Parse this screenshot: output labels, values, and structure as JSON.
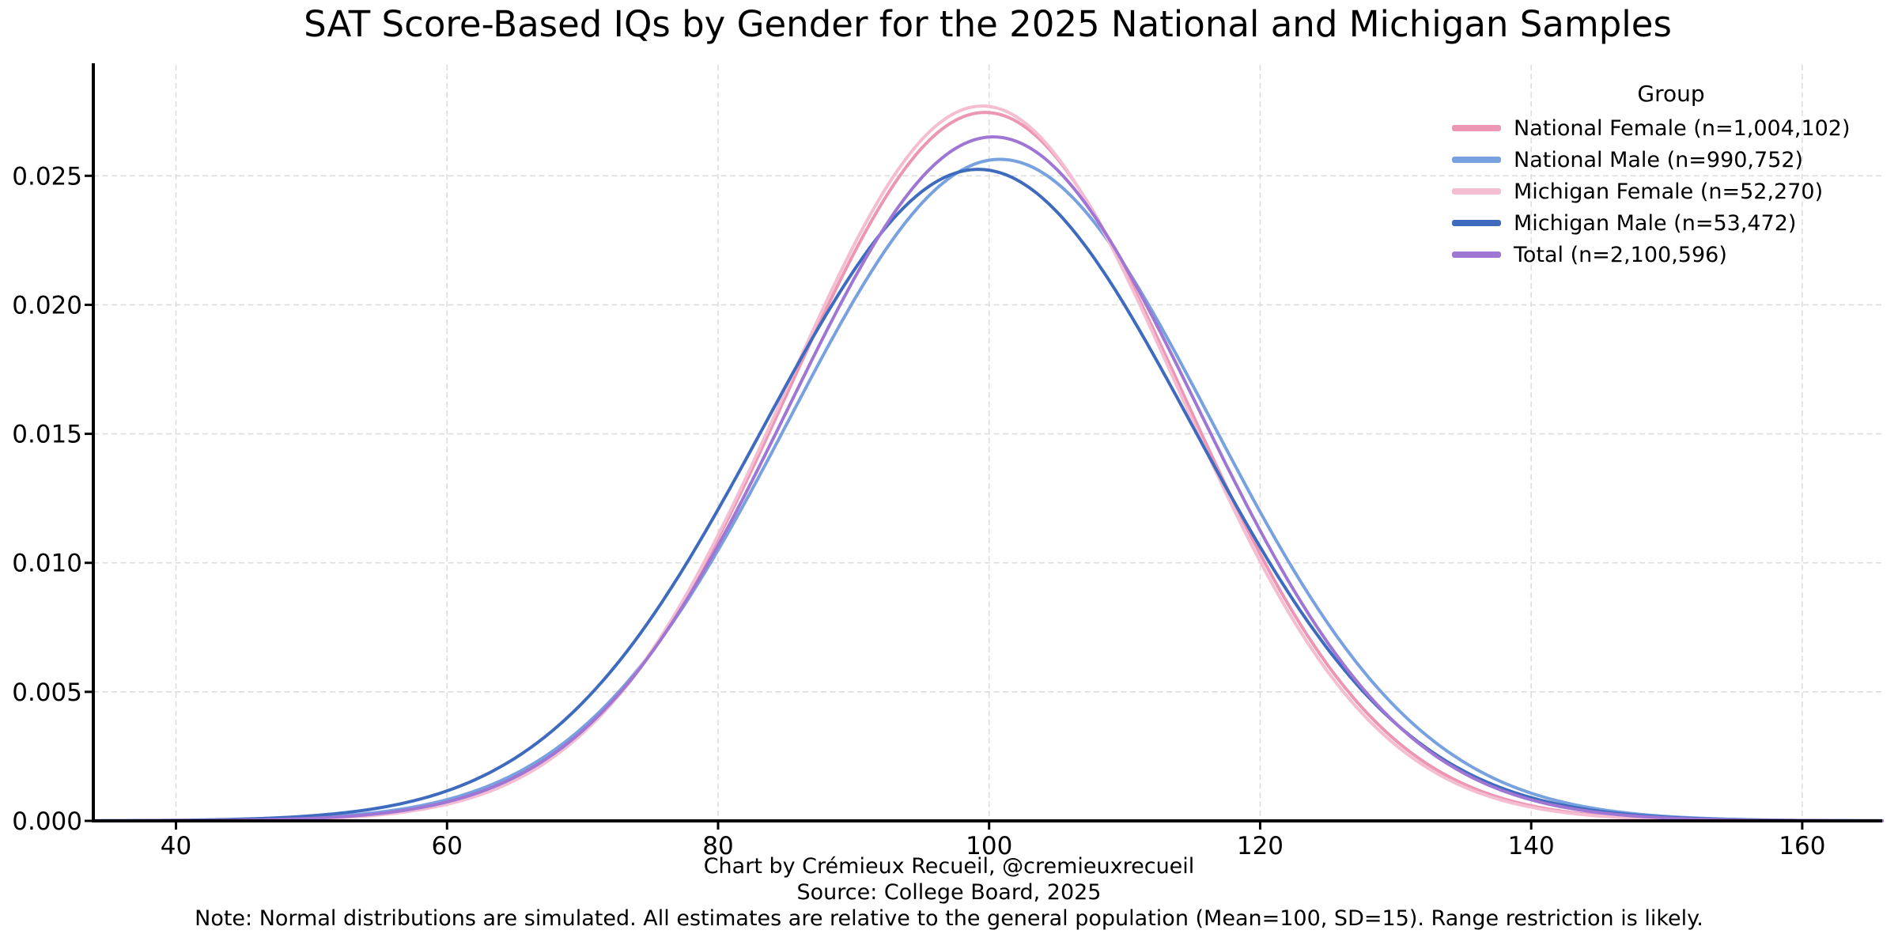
{
  "title": "SAT Score-Based IQs by Gender for the 2025 National and Michigan Samples",
  "legend": {
    "title": "Group",
    "items": [
      {
        "label": "National Female (n=1,004,102)"
      },
      {
        "label": "National Male (n=990,752)"
      },
      {
        "label": "Michigan Female (n=52,270)"
      },
      {
        "label": "Michigan Male (n=53,472)"
      },
      {
        "label": "Total (n=2,100,596)"
      }
    ]
  },
  "footer": {
    "credit": "Chart by Crémieux Recueil, @cremieuxrecueil",
    "source": "Source: College Board, 2025",
    "note": "Note: Normal distributions are simulated. All estimates are relative to the general population (Mean=100, SD=15). Range restriction is likely."
  },
  "chart_data": {
    "type": "line",
    "subtype": "normal-density-curves",
    "title": "SAT Score-Based IQs by Gender for the 2025 National and Michigan Samples",
    "xlabel": "",
    "ylabel": "",
    "xlim": [
      33.9,
      165.9
    ],
    "ylim": [
      0,
      0.0293
    ],
    "x_ticks": [
      40,
      60,
      80,
      100,
      120,
      140,
      160
    ],
    "y_ticks": [
      0.0,
      0.005,
      0.01,
      0.015,
      0.02,
      0.025
    ],
    "y_tick_labels": [
      "0.000",
      "0.005",
      "0.010",
      "0.015",
      "0.020",
      "0.025"
    ],
    "grid": true,
    "grid_style": "light-gray-dashed",
    "legend_position": "upper right",
    "legend_title": "Group",
    "reference": {
      "general_population_mean": 100,
      "general_population_sd": 15
    },
    "series": [
      {
        "name": "National Female (n=1,004,102)",
        "n": 1004102,
        "mean": 99.7,
        "sd": 14.53,
        "peak_density": 0.0275,
        "color": "#EC96B4"
      },
      {
        "name": "National Male (n=990,752)",
        "n": 990752,
        "mean": 100.8,
        "sd": 15.56,
        "peak_density": 0.0256,
        "color": "#78A1DF"
      },
      {
        "name": "Michigan Female (n=52,270)",
        "n": 52270,
        "mean": 99.5,
        "sd": 14.4,
        "peak_density": 0.0277,
        "color": "#F5BDD1"
      },
      {
        "name": "Michigan Male (n=53,472)",
        "n": 53472,
        "mean": 99.2,
        "sd": 15.8,
        "peak_density": 0.0253,
        "color": "#3F6BBF"
      },
      {
        "name": "Total (n=2,100,596)",
        "n": 2100596,
        "mean": 100.3,
        "sd": 15.05,
        "peak_density": 0.0265,
        "color": "#9F76D3"
      }
    ]
  }
}
